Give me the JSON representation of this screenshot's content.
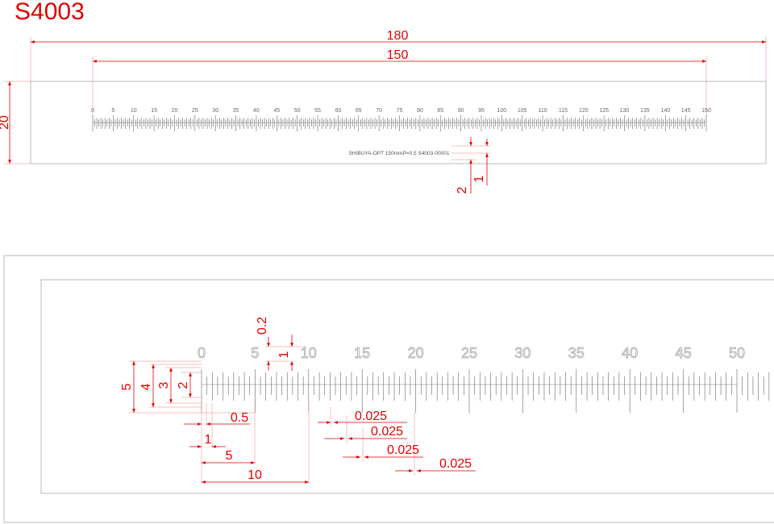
{
  "title": "S4003",
  "overview": {
    "dimensions": {
      "total_length": "180",
      "scale_length": "150",
      "width": "20",
      "text_offset": "2",
      "text_height": "1"
    },
    "scale_labels": [
      "0",
      "5",
      "10",
      "15",
      "20",
      "25",
      "30",
      "35",
      "40",
      "45",
      "50",
      "55",
      "60",
      "65",
      "70",
      "75",
      "80",
      "85",
      "90",
      "95",
      "100",
      "105",
      "110",
      "115",
      "120",
      "125",
      "130",
      "135",
      "140",
      "145",
      "150"
    ],
    "imprint": "SHIBUYA-OPT 150mmP=0.5 S4003-00001"
  },
  "detail": {
    "scale_labels": [
      "0",
      "5",
      "10",
      "15",
      "20",
      "25",
      "30",
      "35",
      "40",
      "45",
      "50"
    ],
    "dimensions": {
      "label_gap": "0.2",
      "label_height": "1",
      "tick_5": "5",
      "tick_4": "4",
      "tick_3": "3",
      "tick_2": "2",
      "half_mm": "0.5",
      "one_mm": "1",
      "five_mm": "5",
      "ten_mm": "10",
      "line_width": [
        "0.025",
        "0.025",
        "0.025",
        "0.025"
      ]
    }
  }
}
